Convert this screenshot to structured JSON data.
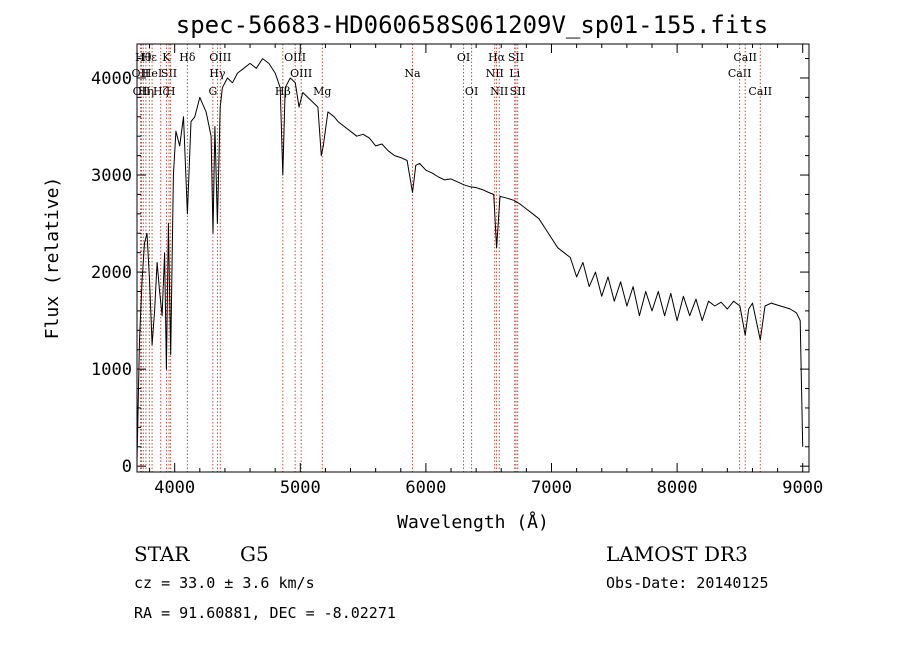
{
  "chart_data": {
    "type": "line",
    "title": "spec-56683-HD060658S061209V_sp01-155.fits",
    "xlabel": "Wavelength (Å)",
    "ylabel": "Flux (relative)",
    "xlim": [
      3700,
      9050
    ],
    "ylim": [
      -60,
      4350
    ],
    "x_ticks": [
      4000,
      5000,
      6000,
      7000,
      8000,
      9000
    ],
    "x_tick_labels": [
      "4000",
      "5000",
      "6000",
      "7000",
      "8000",
      "9000"
    ],
    "y_ticks": [
      0,
      1000,
      2000,
      3000,
      4000
    ],
    "y_tick_labels": [
      "0",
      "1000",
      "2000",
      "3000",
      "4000"
    ],
    "series": [
      {
        "name": "spectrum",
        "x": [
          3700,
          3720,
          3740,
          3760,
          3780,
          3800,
          3820,
          3840,
          3860,
          3880,
          3900,
          3920,
          3934,
          3950,
          3968,
          3990,
          4010,
          4040,
          4070,
          4101,
          4130,
          4160,
          4200,
          4250,
          4290,
          4305,
          4320,
          4340,
          4362,
          4380,
          4420,
          4460,
          4500,
          4550,
          4600,
          4650,
          4700,
          4750,
          4800,
          4840,
          4861,
          4880,
          4920,
          4960,
          4990,
          5020,
          5060,
          5100,
          5140,
          5167,
          5183,
          5220,
          5270,
          5300,
          5350,
          5400,
          5450,
          5500,
          5550,
          5600,
          5650,
          5700,
          5750,
          5800,
          5850,
          5893,
          5920,
          5950,
          6000,
          6050,
          6100,
          6150,
          6200,
          6250,
          6300,
          6350,
          6400,
          6450,
          6500,
          6540,
          6563,
          6590,
          6620,
          6650,
          6700,
          6750,
          6800,
          6850,
          6900,
          6950,
          7000,
          7050,
          7100,
          7150,
          7200,
          7250,
          7300,
          7350,
          7400,
          7450,
          7500,
          7550,
          7600,
          7650,
          7700,
          7750,
          7800,
          7850,
          7900,
          7950,
          8000,
          8050,
          8100,
          8150,
          8200,
          8250,
          8300,
          8350,
          8400,
          8450,
          8500,
          8542,
          8570,
          8600,
          8662,
          8700,
          8750,
          8800,
          8850,
          8900,
          8950,
          8980,
          9000
        ],
        "y": [
          50,
          1300,
          1900,
          2300,
          2400,
          1900,
          1250,
          1600,
          2100,
          1800,
          1550,
          2200,
          1000,
          2500,
          1150,
          3000,
          3450,
          3300,
          3600,
          2600,
          3550,
          3600,
          3800,
          3650,
          3400,
          2400,
          3500,
          2500,
          3700,
          3900,
          4000,
          3950,
          4050,
          4100,
          4150,
          4100,
          4200,
          4150,
          4050,
          3900,
          3000,
          3900,
          4000,
          3950,
          3700,
          3850,
          3800,
          3750,
          3700,
          3200,
          3300,
          3650,
          3600,
          3550,
          3500,
          3450,
          3400,
          3420,
          3380,
          3300,
          3320,
          3250,
          3200,
          3180,
          3150,
          2820,
          3100,
          3120,
          3050,
          3020,
          2980,
          2950,
          2960,
          2930,
          2900,
          2880,
          2870,
          2850,
          2820,
          2800,
          2250,
          2780,
          2770,
          2760,
          2740,
          2700,
          2650,
          2600,
          2550,
          2450,
          2350,
          2250,
          2200,
          2150,
          1950,
          2100,
          1850,
          2000,
          1750,
          1950,
          1700,
          1900,
          1650,
          1850,
          1550,
          1800,
          1600,
          1800,
          1550,
          1780,
          1500,
          1750,
          1550,
          1720,
          1500,
          1700,
          1650,
          1690,
          1620,
          1700,
          1650,
          1350,
          1620,
          1680,
          1300,
          1650,
          1680,
          1660,
          1640,
          1620,
          1580,
          1500,
          200
        ]
      }
    ],
    "line_markers": [
      {
        "wavelength": 3727,
        "label": "OII",
        "row": 2
      },
      {
        "wavelength": 3736,
        "label": "OII",
        "row": 3
      },
      {
        "wavelength": 3750,
        "label": "Hθ",
        "row": 1
      },
      {
        "wavelength": 3771,
        "label": "Hη",
        "row": 3
      },
      {
        "wavelength": 3798,
        "label": "Hε",
        "row": 1
      },
      {
        "wavelength": 3820,
        "label": "HeI",
        "row": 2
      },
      {
        "wavelength": 3889,
        "label": "Hζ",
        "row": 3
      },
      {
        "wavelength": 3934,
        "label": "K",
        "row": 1
      },
      {
        "wavelength": 3955,
        "label": "SII",
        "row": 2
      },
      {
        "wavelength": 3968,
        "label": "H",
        "row": 3
      },
      {
        "wavelength": 4101,
        "label": "Hδ",
        "row": 1
      },
      {
        "wavelength": 4304,
        "label": "G",
        "row": 3
      },
      {
        "wavelength": 4340,
        "label": "Hγ",
        "row": 2
      },
      {
        "wavelength": 4363,
        "label": "OIII",
        "row": 1
      },
      {
        "wavelength": 4861,
        "label": "Hβ",
        "row": 3
      },
      {
        "wavelength": 4959,
        "label": "OIII",
        "row": 1
      },
      {
        "wavelength": 5007,
        "label": "OIII",
        "row": 2
      },
      {
        "wavelength": 5175,
        "label": "Mg",
        "row": 3
      },
      {
        "wavelength": 5893,
        "label": "Na",
        "row": 2
      },
      {
        "wavelength": 6300,
        "label": "OI",
        "row": 1
      },
      {
        "wavelength": 6364,
        "label": "OI",
        "row": 3
      },
      {
        "wavelength": 6548,
        "label": "NII",
        "row": 2
      },
      {
        "wavelength": 6563,
        "label": "Hα",
        "row": 1
      },
      {
        "wavelength": 6584,
        "label": "NII",
        "row": 3
      },
      {
        "wavelength": 6707,
        "label": "Li",
        "row": 2
      },
      {
        "wavelength": 6717,
        "label": "SII",
        "row": 1
      },
      {
        "wavelength": 6731,
        "label": "SII",
        "row": 3
      },
      {
        "wavelength": 8498,
        "label": "CaII",
        "row": 2
      },
      {
        "wavelength": 8542,
        "label": "CaII",
        "row": 1
      },
      {
        "wavelength": 8662,
        "label": "CaII",
        "row": 3
      }
    ]
  },
  "info": {
    "class_label": "STAR",
    "subclass": "G5",
    "survey": "LAMOST DR3",
    "redshift": "cz = 33.0 ± 3.6 km/s",
    "obs_date": "Obs-Date: 20140125",
    "coords": "RA =  91.60881, DEC =  -8.02271"
  },
  "colors": {
    "axis": "#000000",
    "spectrum": "#000000",
    "marker": "#c0392b"
  }
}
